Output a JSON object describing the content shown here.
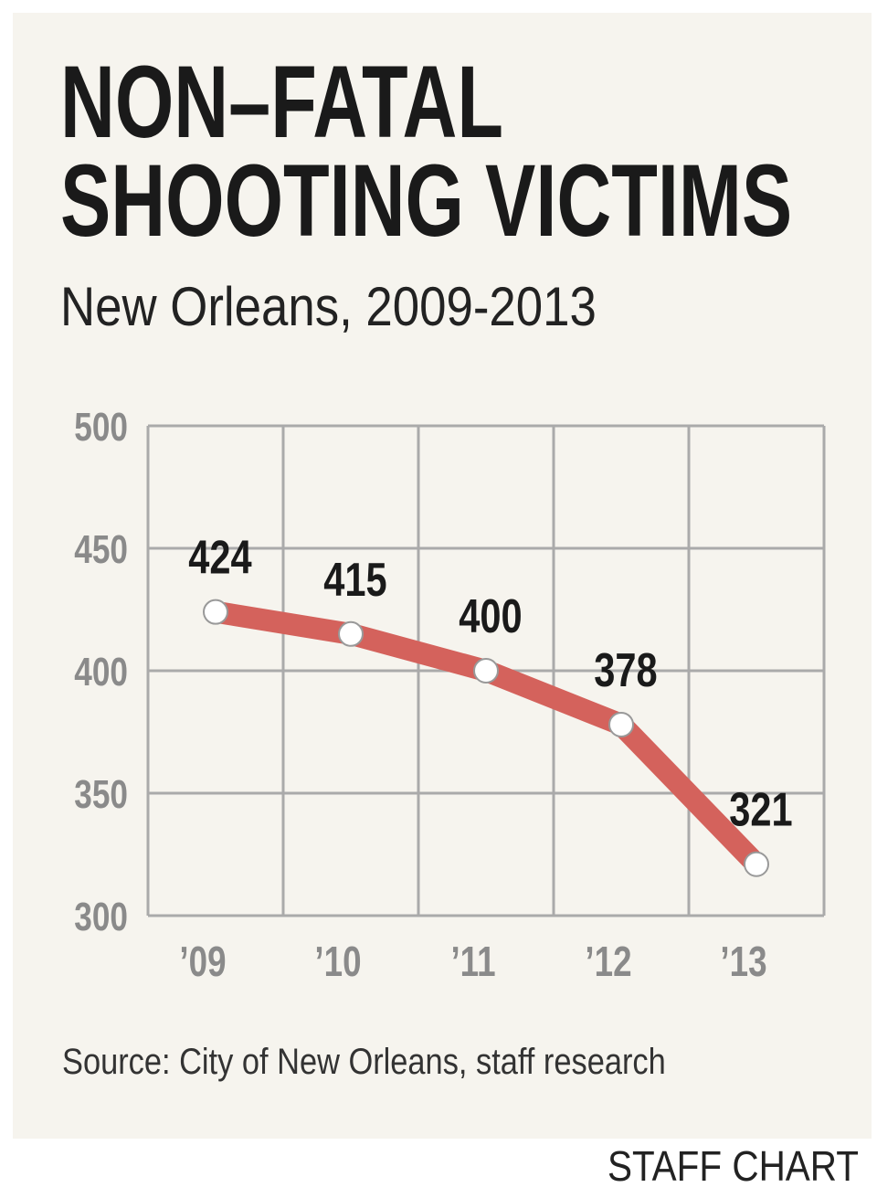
{
  "chart_data": {
    "type": "line",
    "title": [
      "NON–FATAL",
      "SHOOTING VICTIMS"
    ],
    "subtitle": "New Orleans, 2009-2013",
    "categories": [
      "’09",
      "’10",
      "’11",
      "’12",
      "’13"
    ],
    "values": [
      424,
      415,
      400,
      378,
      321
    ],
    "color": "#d4625c",
    "ylim": [
      300,
      500
    ],
    "yticks": [
      300,
      350,
      400,
      450,
      500
    ],
    "grid": true,
    "source": "Source: City of New Orleans, staff research",
    "credit": "STAFF CHART"
  }
}
